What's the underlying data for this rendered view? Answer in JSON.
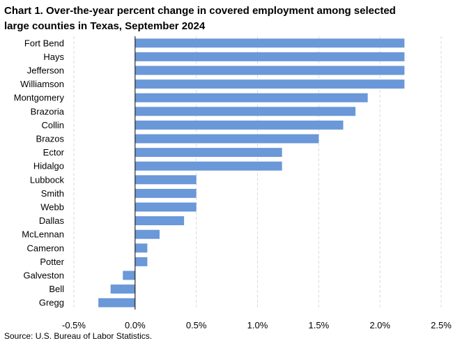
{
  "chart_data": {
    "type": "bar",
    "orientation": "horizontal",
    "title_lines": [
      "Chart 1. Over-the-year percent change in covered employment among selected",
      "large counties in Texas, September 2024"
    ],
    "categories": [
      "Fort Bend",
      "Hays",
      "Jefferson",
      "Williamson",
      "Montgomery",
      "Brazoria",
      "Collin",
      "Brazos",
      "Ector",
      "Hidalgo",
      "Lubbock",
      "Smith",
      "Webb",
      "Dallas",
      "McLennan",
      "Cameron",
      "Potter",
      "Galveston",
      "Bell",
      "Gregg"
    ],
    "values": [
      2.2,
      2.2,
      2.2,
      2.2,
      1.9,
      1.8,
      1.7,
      1.5,
      1.2,
      1.2,
      0.5,
      0.5,
      0.5,
      0.4,
      0.2,
      0.1,
      0.1,
      -0.1,
      -0.2,
      -0.3
    ],
    "xlim": [
      -0.5,
      2.5
    ],
    "x_ticks": [
      -0.5,
      0.0,
      0.5,
      1.0,
      1.5,
      2.0,
      2.5
    ],
    "x_tick_labels": [
      "-0.5%",
      "0.0%",
      "0.5%",
      "1.0%",
      "1.5%",
      "2.0%",
      "2.5%"
    ],
    "xlabel": "",
    "ylabel": "",
    "grid": "vertical-dashed",
    "legend": "none",
    "bar_color": "#6a98d8",
    "source": "Source: U.S. Bureau of Labor Statistics."
  }
}
